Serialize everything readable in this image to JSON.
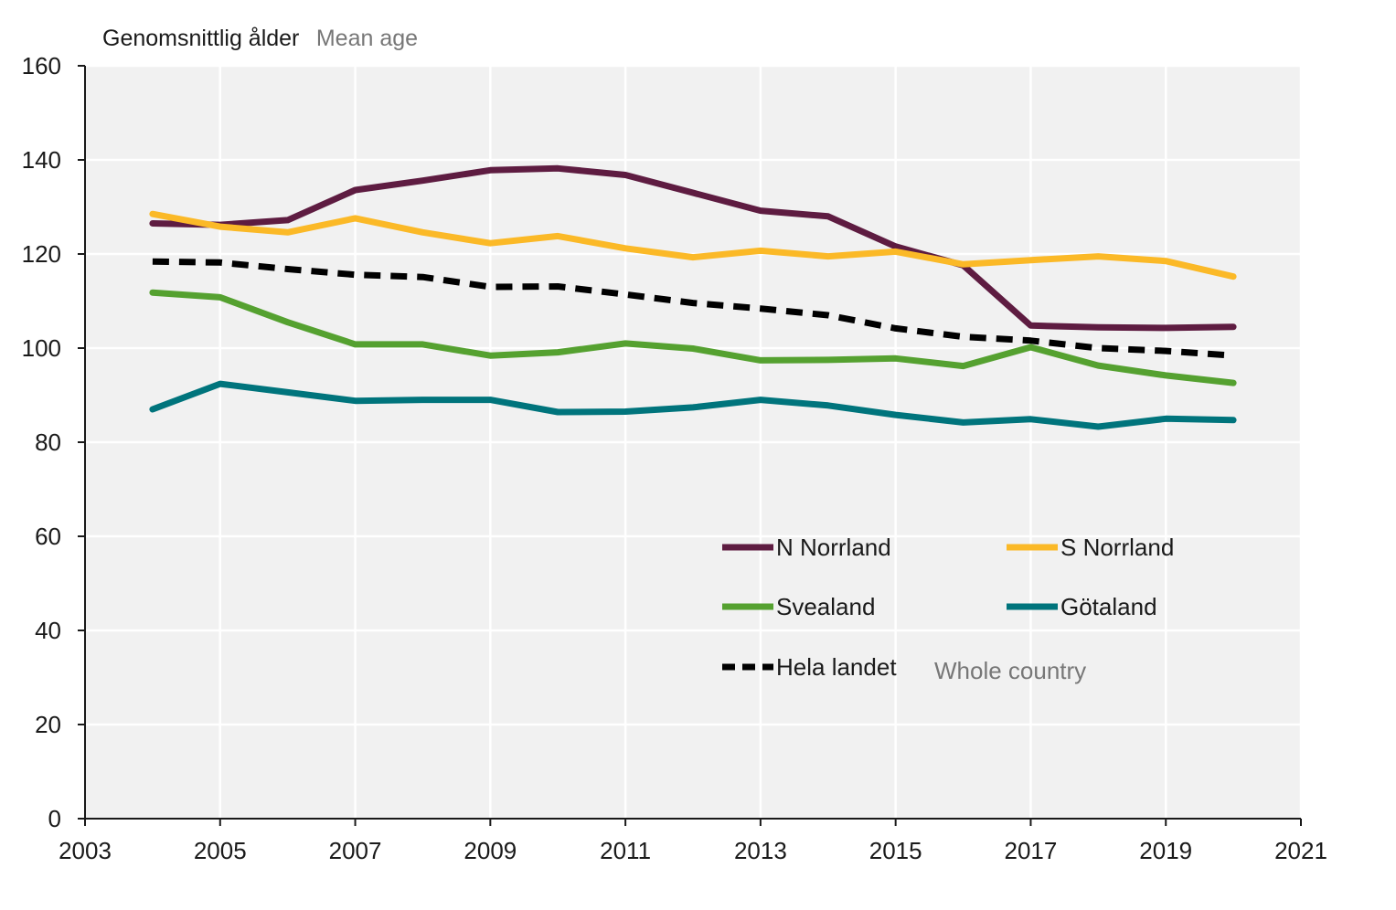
{
  "chart_data": {
    "type": "line",
    "ylabel": "Genomsnittlig ålder",
    "ylabel_en": "Mean age",
    "xlim": [
      2003,
      2021
    ],
    "ylim": [
      0,
      160
    ],
    "x_ticks": [
      2003,
      2005,
      2007,
      2009,
      2011,
      2013,
      2015,
      2017,
      2019,
      2021
    ],
    "y_ticks": [
      0,
      20,
      40,
      60,
      80,
      100,
      120,
      140,
      160
    ],
    "grid": true,
    "background": "#f1f1f1",
    "legend_placement": "bottom-right",
    "legend_note": "Whole country",
    "x": [
      2004,
      2005,
      2006,
      2007,
      2008,
      2009,
      2010,
      2011,
      2012,
      2013,
      2014,
      2015,
      2016,
      2017,
      2018,
      2019,
      2020
    ],
    "series": [
      {
        "name": "N Norrland",
        "color": "#5e1c41",
        "dashed": false,
        "values": [
          126.5,
          126.2,
          127.2,
          133.6,
          135.6,
          137.8,
          138.2,
          136.8,
          133.0,
          129.2,
          128.0,
          121.6,
          117.6,
          104.8,
          104.4,
          104.3,
          104.5
        ]
      },
      {
        "name": "S Norrland",
        "color": "#fbb927",
        "dashed": false,
        "values": [
          128.5,
          125.8,
          124.6,
          127.6,
          124.6,
          122.3,
          123.8,
          121.2,
          119.3,
          120.7,
          119.5,
          120.5,
          117.8,
          118.7,
          119.5,
          118.5,
          115.2
        ]
      },
      {
        "name": "Svealand",
        "color": "#55a130",
        "dashed": false,
        "values": [
          111.8,
          110.8,
          105.5,
          100.8,
          100.8,
          98.4,
          99.1,
          101.0,
          99.9,
          97.4,
          97.5,
          97.8,
          96.2,
          100.2,
          96.3,
          94.2,
          92.6
        ]
      },
      {
        "name": "Götaland",
        "color": "#00747c",
        "dashed": false,
        "values": [
          87.0,
          92.4,
          90.6,
          88.8,
          89.0,
          89.0,
          86.4,
          86.5,
          87.4,
          89.0,
          87.8,
          85.8,
          84.2,
          84.9,
          83.3,
          85.0,
          84.7
        ]
      },
      {
        "name": "Hela landet",
        "color": "#000000",
        "dashed": true,
        "values": [
          118.4,
          118.2,
          116.8,
          115.6,
          115.1,
          113.0,
          113.1,
          111.4,
          109.6,
          108.4,
          107.0,
          104.2,
          102.4,
          101.6,
          100.0,
          99.4,
          98.4
        ]
      }
    ]
  }
}
